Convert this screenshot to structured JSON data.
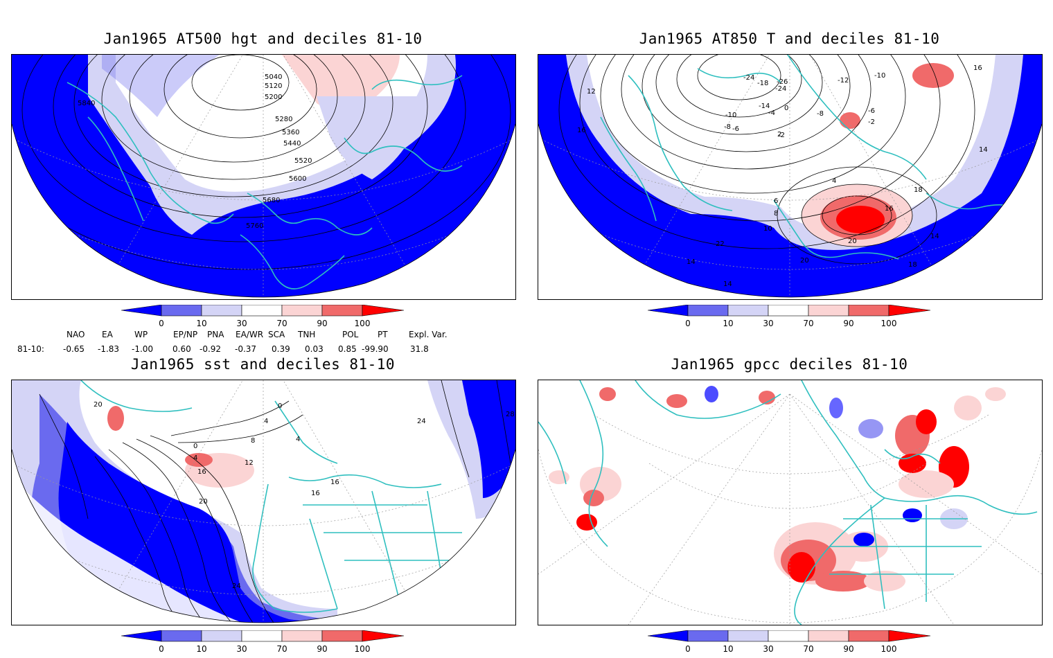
{
  "panels": {
    "p1": {
      "title": "Jan1965 AT500 hgt and deciles 81-10",
      "contour_labels": [
        "5040",
        "5120",
        "5200",
        "5280",
        "5360",
        "5440",
        "5520",
        "5600",
        "5680",
        "5760",
        "5840"
      ]
    },
    "p2": {
      "title": "Jan1965 AT850 T and deciles 81-10",
      "contour_labels": [
        "-24",
        "-18",
        "-26",
        "-24",
        "-14",
        "-10",
        "-8",
        "-6",
        "-4",
        "-2",
        "0",
        "-12",
        "-10",
        "-8",
        "-6",
        "-2",
        "2",
        "4",
        "6",
        "8",
        "10",
        "12",
        "16",
        "16",
        "16",
        "18",
        "20",
        "22",
        "14",
        "14",
        "14",
        "14",
        "20",
        "18"
      ]
    },
    "p3": {
      "title": "Jan1965 sst and deciles 81-10",
      "contour_labels": [
        "20",
        "0",
        "4",
        "8",
        "12",
        "16",
        "20",
        "24",
        "4",
        "0",
        "16",
        "16",
        "24",
        "28",
        "4"
      ]
    },
    "p4": {
      "title": "Jan1965 gpcc deciles 81-10"
    }
  },
  "colorbar": {
    "labels": [
      "0",
      "10",
      "30",
      "70",
      "90",
      "100"
    ],
    "colors": [
      "#0000ff",
      "#6a6aef",
      "#d4d4f6",
      "#ffffff",
      "#fbd4d4",
      "#f06a6a",
      "#ff0000"
    ]
  },
  "indices": {
    "headers": [
      "NAO",
      "EA",
      "WP",
      "EP/NP",
      "PNA",
      "EA/WR",
      "SCA",
      "TNH",
      "POL",
      "PT",
      "Expl. Var."
    ],
    "row_label": "81-10:",
    "values": [
      "-0.65",
      "-1.83",
      "-1.00",
      "0.60",
      "-0.92",
      "-0.37",
      "0.39",
      "0.03",
      "0.85",
      "-99.90",
      "31.8"
    ]
  },
  "colors": {
    "coast": "#2fbfbf",
    "contour": "#000000",
    "grid": "#999999"
  }
}
